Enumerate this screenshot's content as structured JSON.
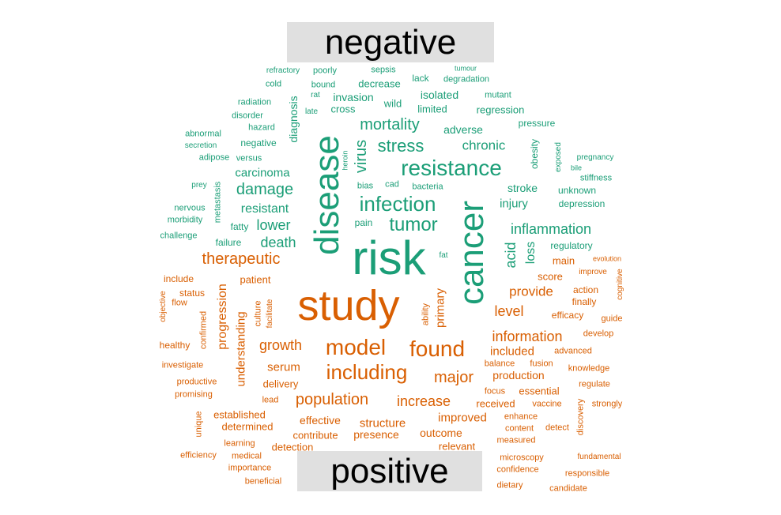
{
  "chart_data": {
    "type": "wordcloud",
    "categories": [
      "negative",
      "positive"
    ],
    "colors": {
      "negative": "#1b9e77",
      "positive": "#d95f02"
    },
    "words": [
      {
        "text": "risk",
        "group": "negative",
        "weight": 60,
        "vertical": false
      },
      {
        "text": "disease",
        "group": "negative",
        "weight": 44,
        "vertical": true
      },
      {
        "text": "cancer",
        "group": "negative",
        "weight": 44,
        "vertical": true
      },
      {
        "text": "resistance",
        "group": "negative",
        "weight": 28,
        "vertical": false
      },
      {
        "text": "infection",
        "group": "negative",
        "weight": 26,
        "vertical": false
      },
      {
        "text": "tumor",
        "group": "negative",
        "weight": 24,
        "vertical": false
      },
      {
        "text": "stress",
        "group": "negative",
        "weight": 22,
        "vertical": false
      },
      {
        "text": "mortality",
        "group": "negative",
        "weight": 20,
        "vertical": false
      },
      {
        "text": "virus",
        "group": "negative",
        "weight": 20,
        "vertical": true
      },
      {
        "text": "damage",
        "group": "negative",
        "weight": 20,
        "vertical": false
      },
      {
        "text": "lower",
        "group": "negative",
        "weight": 18,
        "vertical": false
      },
      {
        "text": "death",
        "group": "negative",
        "weight": 18,
        "vertical": false
      },
      {
        "text": "inflammation",
        "group": "negative",
        "weight": 18,
        "vertical": false
      },
      {
        "text": "chronic",
        "group": "negative",
        "weight": 17,
        "vertical": false
      },
      {
        "text": "acid",
        "group": "negative",
        "weight": 18,
        "vertical": true
      },
      {
        "text": "loss",
        "group": "negative",
        "weight": 16,
        "vertical": true
      },
      {
        "text": "resistant",
        "group": "negative",
        "weight": 16,
        "vertical": false
      },
      {
        "text": "carcinoma",
        "group": "negative",
        "weight": 15,
        "vertical": false
      },
      {
        "text": "injury",
        "group": "negative",
        "weight": 15,
        "vertical": false
      },
      {
        "text": "stroke",
        "group": "negative",
        "weight": 14,
        "vertical": false
      },
      {
        "text": "invasion",
        "group": "negative",
        "weight": 14,
        "vertical": false
      },
      {
        "text": "isolated",
        "group": "negative",
        "weight": 14,
        "vertical": false
      },
      {
        "text": "adverse",
        "group": "negative",
        "weight": 14,
        "vertical": false
      },
      {
        "text": "diagnosis",
        "group": "negative",
        "weight": 14,
        "vertical": true
      },
      {
        "text": "regression",
        "group": "negative",
        "weight": 13,
        "vertical": false
      },
      {
        "text": "limited",
        "group": "negative",
        "weight": 13,
        "vertical": false
      },
      {
        "text": "wild",
        "group": "negative",
        "weight": 13,
        "vertical": false
      },
      {
        "text": "decrease",
        "group": "negative",
        "weight": 13,
        "vertical": false
      },
      {
        "text": "cross",
        "group": "negative",
        "weight": 13,
        "vertical": false
      },
      {
        "text": "regulatory",
        "group": "negative",
        "weight": 12,
        "vertical": false
      },
      {
        "text": "depression",
        "group": "negative",
        "weight": 12,
        "vertical": false
      },
      {
        "text": "unknown",
        "group": "negative",
        "weight": 12,
        "vertical": false
      },
      {
        "text": "obesity",
        "group": "negative",
        "weight": 12,
        "vertical": true
      },
      {
        "text": "pressure",
        "group": "negative",
        "weight": 12,
        "vertical": false
      },
      {
        "text": "lack",
        "group": "negative",
        "weight": 12,
        "vertical": false
      },
      {
        "text": "negative",
        "group": "negative",
        "weight": 12,
        "vertical": false
      },
      {
        "text": "fatty",
        "group": "negative",
        "weight": 12,
        "vertical": false
      },
      {
        "text": "failure",
        "group": "negative",
        "weight": 12,
        "vertical": false
      },
      {
        "text": "pain",
        "group": "negative",
        "weight": 12,
        "vertical": false
      },
      {
        "text": "versus",
        "group": "negative",
        "weight": 11,
        "vertical": false
      },
      {
        "text": "bacteria",
        "group": "negative",
        "weight": 11,
        "vertical": false
      },
      {
        "text": "sepsis",
        "group": "negative",
        "weight": 11,
        "vertical": false
      },
      {
        "text": "poorly",
        "group": "negative",
        "weight": 11,
        "vertical": false
      },
      {
        "text": "hazard",
        "group": "negative",
        "weight": 11,
        "vertical": false
      },
      {
        "text": "disorder",
        "group": "negative",
        "weight": 11,
        "vertical": false
      },
      {
        "text": "radiation",
        "group": "negative",
        "weight": 11,
        "vertical": false
      },
      {
        "text": "degradation",
        "group": "negative",
        "weight": 11,
        "vertical": false
      },
      {
        "text": "mutant",
        "group": "negative",
        "weight": 11,
        "vertical": false
      },
      {
        "text": "adipose",
        "group": "negative",
        "weight": 11,
        "vertical": false
      },
      {
        "text": "abnormal",
        "group": "negative",
        "weight": 11,
        "vertical": false
      },
      {
        "text": "metastasis",
        "group": "negative",
        "weight": 11,
        "vertical": true
      },
      {
        "text": "nervous",
        "group": "negative",
        "weight": 11,
        "vertical": false
      },
      {
        "text": "morbidity",
        "group": "negative",
        "weight": 11,
        "vertical": false
      },
      {
        "text": "challenge",
        "group": "negative",
        "weight": 11,
        "vertical": false
      },
      {
        "text": "stiffness",
        "group": "negative",
        "weight": 11,
        "vertical": false
      },
      {
        "text": "bias",
        "group": "negative",
        "weight": 11,
        "vertical": false
      },
      {
        "text": "cad",
        "group": "negative",
        "weight": 11,
        "vertical": false
      },
      {
        "text": "exposed",
        "group": "negative",
        "weight": 10,
        "vertical": true
      },
      {
        "text": "bound",
        "group": "negative",
        "weight": 11,
        "vertical": false
      },
      {
        "text": "cold",
        "group": "negative",
        "weight": 11,
        "vertical": false
      },
      {
        "text": "refractory",
        "group": "negative",
        "weight": 10,
        "vertical": false
      },
      {
        "text": "late",
        "group": "negative",
        "weight": 10,
        "vertical": false
      },
      {
        "text": "rat",
        "group": "negative",
        "weight": 10,
        "vertical": false
      },
      {
        "text": "secretion",
        "group": "negative",
        "weight": 10,
        "vertical": false
      },
      {
        "text": "prey",
        "group": "negative",
        "weight": 10,
        "vertical": false
      },
      {
        "text": "pregnancy",
        "group": "negative",
        "weight": 10,
        "vertical": false
      },
      {
        "text": "bile",
        "group": "negative",
        "weight": 9,
        "vertical": false
      },
      {
        "text": "tumour",
        "group": "negative",
        "weight": 9,
        "vertical": false
      },
      {
        "text": "heroin",
        "group": "negative",
        "weight": 9,
        "vertical": true
      },
      {
        "text": "fat",
        "group": "negative",
        "weight": 10,
        "vertical": false
      },
      {
        "text": "study",
        "group": "positive",
        "weight": 54,
        "vertical": false
      },
      {
        "text": "model",
        "group": "positive",
        "weight": 28,
        "vertical": false
      },
      {
        "text": "found",
        "group": "positive",
        "weight": 28,
        "vertical": false
      },
      {
        "text": "including",
        "group": "positive",
        "weight": 26,
        "vertical": false
      },
      {
        "text": "major",
        "group": "positive",
        "weight": 20,
        "vertical": false
      },
      {
        "text": "population",
        "group": "positive",
        "weight": 20,
        "vertical": false
      },
      {
        "text": "therapeutic",
        "group": "positive",
        "weight": 20,
        "vertical": false
      },
      {
        "text": "increase",
        "group": "positive",
        "weight": 18,
        "vertical": false
      },
      {
        "text": "growth",
        "group": "positive",
        "weight": 18,
        "vertical": false
      },
      {
        "text": "information",
        "group": "positive",
        "weight": 18,
        "vertical": false
      },
      {
        "text": "level",
        "group": "positive",
        "weight": 18,
        "vertical": false
      },
      {
        "text": "provide",
        "group": "positive",
        "weight": 17,
        "vertical": false
      },
      {
        "text": "progression",
        "group": "positive",
        "weight": 16,
        "vertical": true
      },
      {
        "text": "understanding",
        "group": "positive",
        "weight": 15,
        "vertical": true
      },
      {
        "text": "primary",
        "group": "positive",
        "weight": 15,
        "vertical": true
      },
      {
        "text": "serum",
        "group": "positive",
        "weight": 15,
        "vertical": false
      },
      {
        "text": "included",
        "group": "positive",
        "weight": 15,
        "vertical": false
      },
      {
        "text": "structure",
        "group": "positive",
        "weight": 15,
        "vertical": false
      },
      {
        "text": "improved",
        "group": "positive",
        "weight": 15,
        "vertical": false
      },
      {
        "text": "production",
        "group": "positive",
        "weight": 14,
        "vertical": false
      },
      {
        "text": "effective",
        "group": "positive",
        "weight": 14,
        "vertical": false
      },
      {
        "text": "outcome",
        "group": "positive",
        "weight": 14,
        "vertical": false
      },
      {
        "text": "presence",
        "group": "positive",
        "weight": 14,
        "vertical": false
      },
      {
        "text": "delivery",
        "group": "positive",
        "weight": 13,
        "vertical": false
      },
      {
        "text": "contribute",
        "group": "positive",
        "weight": 13,
        "vertical": false
      },
      {
        "text": "determined",
        "group": "positive",
        "weight": 13,
        "vertical": false
      },
      {
        "text": "established",
        "group": "positive",
        "weight": 13,
        "vertical": false
      },
      {
        "text": "essential",
        "group": "positive",
        "weight": 13,
        "vertical": false
      },
      {
        "text": "patient",
        "group": "positive",
        "weight": 13,
        "vertical": false
      },
      {
        "text": "detection",
        "group": "positive",
        "weight": 13,
        "vertical": false
      },
      {
        "text": "relevant",
        "group": "positive",
        "weight": 13,
        "vertical": false
      },
      {
        "text": "received",
        "group": "positive",
        "weight": 13,
        "vertical": false
      },
      {
        "text": "main",
        "group": "positive",
        "weight": 13,
        "vertical": false
      },
      {
        "text": "score",
        "group": "positive",
        "weight": 13,
        "vertical": false
      },
      {
        "text": "action",
        "group": "positive",
        "weight": 12,
        "vertical": false
      },
      {
        "text": "finally",
        "group": "positive",
        "weight": 12,
        "vertical": false
      },
      {
        "text": "efficacy",
        "group": "positive",
        "weight": 12,
        "vertical": false
      },
      {
        "text": "status",
        "group": "positive",
        "weight": 12,
        "vertical": false
      },
      {
        "text": "include",
        "group": "positive",
        "weight": 12,
        "vertical": false
      },
      {
        "text": "healthy",
        "group": "positive",
        "weight": 12,
        "vertical": false
      },
      {
        "text": "investigate",
        "group": "positive",
        "weight": 11,
        "vertical": false
      },
      {
        "text": "productive",
        "group": "positive",
        "weight": 11,
        "vertical": false
      },
      {
        "text": "promising",
        "group": "positive",
        "weight": 11,
        "vertical": false
      },
      {
        "text": "lead",
        "group": "positive",
        "weight": 11,
        "vertical": false
      },
      {
        "text": "ability",
        "group": "positive",
        "weight": 11,
        "vertical": true
      },
      {
        "text": "culture",
        "group": "positive",
        "weight": 11,
        "vertical": true
      },
      {
        "text": "facilitate",
        "group": "positive",
        "weight": 10,
        "vertical": true
      },
      {
        "text": "confirmed",
        "group": "positive",
        "weight": 11,
        "vertical": true
      },
      {
        "text": "objective",
        "group": "positive",
        "weight": 10,
        "vertical": true
      },
      {
        "text": "flow",
        "group": "positive",
        "weight": 11,
        "vertical": false
      },
      {
        "text": "advanced",
        "group": "positive",
        "weight": 11,
        "vertical": false
      },
      {
        "text": "develop",
        "group": "positive",
        "weight": 11,
        "vertical": false
      },
      {
        "text": "guide",
        "group": "positive",
        "weight": 11,
        "vertical": false
      },
      {
        "text": "balance",
        "group": "positive",
        "weight": 11,
        "vertical": false
      },
      {
        "text": "fusion",
        "group": "positive",
        "weight": 11,
        "vertical": false
      },
      {
        "text": "knowledge",
        "group": "positive",
        "weight": 11,
        "vertical": false
      },
      {
        "text": "regulate",
        "group": "positive",
        "weight": 11,
        "vertical": false
      },
      {
        "text": "focus",
        "group": "positive",
        "weight": 11,
        "vertical": false
      },
      {
        "text": "vaccine",
        "group": "positive",
        "weight": 11,
        "vertical": false
      },
      {
        "text": "strongly",
        "group": "positive",
        "weight": 11,
        "vertical": false
      },
      {
        "text": "enhance",
        "group": "positive",
        "weight": 11,
        "vertical": false
      },
      {
        "text": "content",
        "group": "positive",
        "weight": 11,
        "vertical": false
      },
      {
        "text": "detect",
        "group": "positive",
        "weight": 11,
        "vertical": false
      },
      {
        "text": "discovery",
        "group": "positive",
        "weight": 11,
        "vertical": true
      },
      {
        "text": "measured",
        "group": "positive",
        "weight": 11,
        "vertical": false
      },
      {
        "text": "unique",
        "group": "positive",
        "weight": 11,
        "vertical": true
      },
      {
        "text": "learning",
        "group": "positive",
        "weight": 11,
        "vertical": false
      },
      {
        "text": "medical",
        "group": "positive",
        "weight": 11,
        "vertical": false
      },
      {
        "text": "efficiency",
        "group": "positive",
        "weight": 11,
        "vertical": false
      },
      {
        "text": "importance",
        "group": "positive",
        "weight": 11,
        "vertical": false
      },
      {
        "text": "beneficial",
        "group": "positive",
        "weight": 11,
        "vertical": false
      },
      {
        "text": "microscopy",
        "group": "positive",
        "weight": 11,
        "vertical": false
      },
      {
        "text": "confidence",
        "group": "positive",
        "weight": 11,
        "vertical": false
      },
      {
        "text": "fundamental",
        "group": "positive",
        "weight": 10,
        "vertical": false
      },
      {
        "text": "responsible",
        "group": "positive",
        "weight": 11,
        "vertical": false
      },
      {
        "text": "dietary",
        "group": "positive",
        "weight": 11,
        "vertical": false
      },
      {
        "text": "candidate",
        "group": "positive",
        "weight": 11,
        "vertical": false
      },
      {
        "text": "evolution",
        "group": "positive",
        "weight": 9,
        "vertical": false
      },
      {
        "text": "improve",
        "group": "positive",
        "weight": 10,
        "vertical": false
      },
      {
        "text": "cognitive",
        "group": "positive",
        "weight": 10,
        "vertical": true
      }
    ]
  }
}
